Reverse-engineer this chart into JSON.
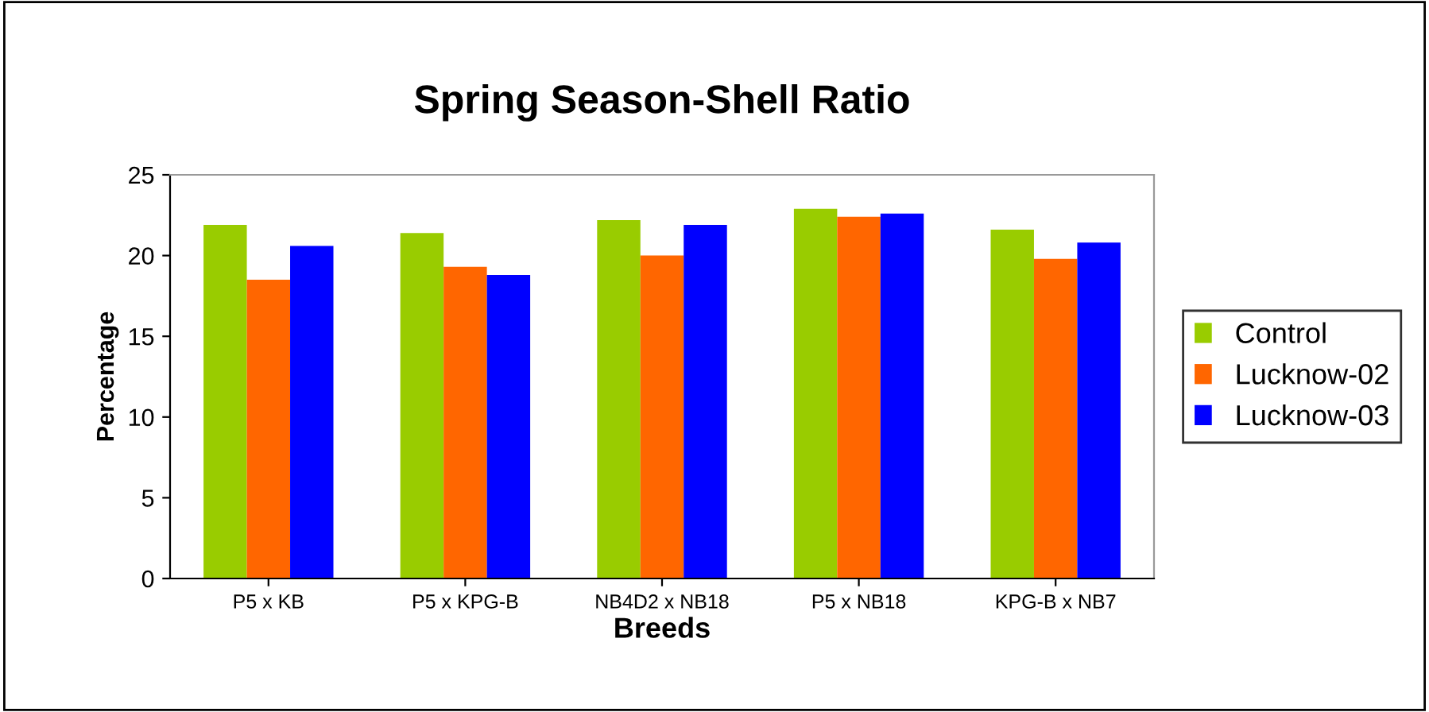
{
  "chart_data": {
    "type": "bar",
    "title": "Spring Season-Shell Ratio",
    "xlabel": "Breeds",
    "ylabel": "Percentage",
    "categories": [
      "P5 x KB",
      "P5 x KPG-B",
      "NB4D2 x NB18",
      "P5 x NB18",
      "KPG-B x NB7"
    ],
    "series": [
      {
        "name": "Control",
        "color": "#99cc00",
        "values": [
          21.9,
          21.4,
          22.2,
          22.9,
          21.6
        ]
      },
      {
        "name": "Lucknow-02",
        "color": "#ff6600",
        "values": [
          18.5,
          19.3,
          20.0,
          22.4,
          19.8
        ]
      },
      {
        "name": "Lucknow-03",
        "color": "#0000ff",
        "values": [
          20.6,
          18.8,
          21.9,
          22.6,
          20.8
        ]
      }
    ],
    "ylim": [
      0,
      25
    ],
    "yticks": [
      0,
      5,
      10,
      15,
      20,
      25
    ],
    "grid": false,
    "legend": "right"
  }
}
